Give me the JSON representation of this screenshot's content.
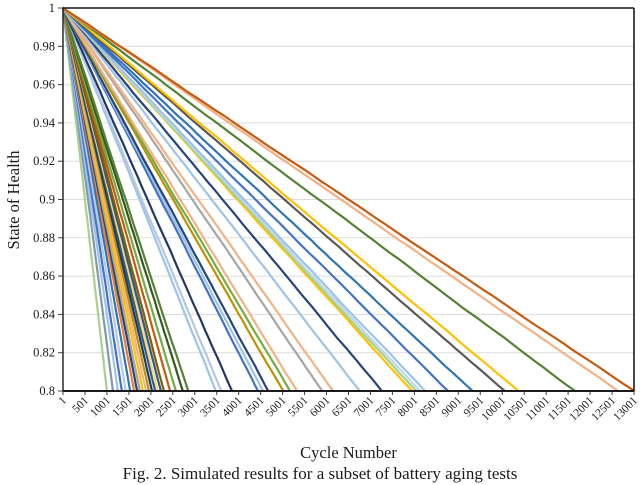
{
  "figure": {
    "caption": "Fig. 2. Simulated results for a subset of battery aging tests"
  },
  "chart_data": {
    "type": "line",
    "title": "",
    "xlabel": "Cycle Number",
    "ylabel": "State of Health",
    "xlim": [
      1,
      13001
    ],
    "ylim": [
      0.8,
      1.0
    ],
    "x_tick_labels": [
      "1",
      "501",
      "1001",
      "1501",
      "2001",
      "2501",
      "3001",
      "3501",
      "4001",
      "4501",
      "5001",
      "5501",
      "6001",
      "6501",
      "7001",
      "7501",
      "8001",
      "8501",
      "9001",
      "9501",
      "10001",
      "10501",
      "11001",
      "11501",
      "12001",
      "12501",
      "13001"
    ],
    "y_tick_labels": [
      "1",
      "0.98",
      "0.96",
      "0.94",
      "0.92",
      "0.9",
      "0.88",
      "0.86",
      "0.84",
      "0.82",
      "0.8"
    ],
    "grid": "horizontal-gridlines-only",
    "legend": "none",
    "series_rule": "Each aging test declines approximately linearly (with slight noise) from SOH 1.0 at cycle 1 down to SOH 0.8 at its end cycle.",
    "series": [
      {
        "color": "#A9D18E",
        "end_cycle": 1000
      },
      {
        "color": "#8497B0",
        "end_cycle": 1140
      },
      {
        "color": "#9DC3E6",
        "end_cycle": 1250
      },
      {
        "color": "#4472C4",
        "end_cycle": 1340
      },
      {
        "color": "#B4C7E7",
        "end_cycle": 1430
      },
      {
        "color": "#2E75B6",
        "end_cycle": 1530
      },
      {
        "color": "#ED7D31",
        "end_cycle": 1620
      },
      {
        "color": "#264478",
        "end_cycle": 1690
      },
      {
        "color": "#A5A5A5",
        "end_cycle": 1750
      },
      {
        "color": "#FFC000",
        "end_cycle": 1820
      },
      {
        "color": "#F4B183",
        "end_cycle": 1890
      },
      {
        "color": "#BF9000",
        "end_cycle": 1960
      },
      {
        "color": "#203864",
        "end_cycle": 2030
      },
      {
        "color": "#255E91",
        "end_cycle": 2100
      },
      {
        "color": "#FFD966",
        "end_cycle": 2160
      },
      {
        "color": "#2F5597",
        "end_cycle": 2230
      },
      {
        "color": "#7F6000",
        "end_cycle": 2300
      },
      {
        "color": "#C55A11",
        "end_cycle": 2440
      },
      {
        "color": "#70AD47",
        "end_cycle": 2570
      },
      {
        "color": "#375623",
        "end_cycle": 2730
      },
      {
        "color": "#548235",
        "end_cycle": 2850
      },
      {
        "color": "#9DC3E6",
        "end_cycle": 3480
      },
      {
        "color": "#B4C7E7",
        "end_cycle": 3600
      },
      {
        "color": "#203864",
        "end_cycle": 3850
      },
      {
        "color": "#4472C4",
        "end_cycle": 4440
      },
      {
        "color": "#9DC3E6",
        "end_cycle": 4550
      },
      {
        "color": "#264478",
        "end_cycle": 4670
      },
      {
        "color": "#BF9000",
        "end_cycle": 5010
      },
      {
        "color": "#70AD47",
        "end_cycle": 5170
      },
      {
        "color": "#F4B183",
        "end_cycle": 5330
      },
      {
        "color": "#A5A5A5",
        "end_cycle": 5900
      },
      {
        "color": "#F4B183",
        "end_cycle": 6150
      },
      {
        "color": "#9DC3E6",
        "end_cycle": 6760
      },
      {
        "color": "#264478",
        "end_cycle": 7260
      },
      {
        "color": "#FFC000",
        "end_cycle": 7950
      },
      {
        "color": "#A9D18E",
        "end_cycle": 8040
      },
      {
        "color": "#BDD7EE",
        "end_cycle": 8130
      },
      {
        "color": "#9DC3E6",
        "end_cycle": 8240
      },
      {
        "color": "#4472C4",
        "end_cycle": 8770
      },
      {
        "color": "#2E75B6",
        "end_cycle": 9310
      },
      {
        "color": "#595959",
        "end_cycle": 10060
      },
      {
        "color": "#FFC000",
        "end_cycle": 10360
      },
      {
        "color": "#548235",
        "end_cycle": 11660
      },
      {
        "color": "#F4B183",
        "end_cycle": 12640
      },
      {
        "color": "#C55A11",
        "end_cycle": 13001
      }
    ]
  }
}
